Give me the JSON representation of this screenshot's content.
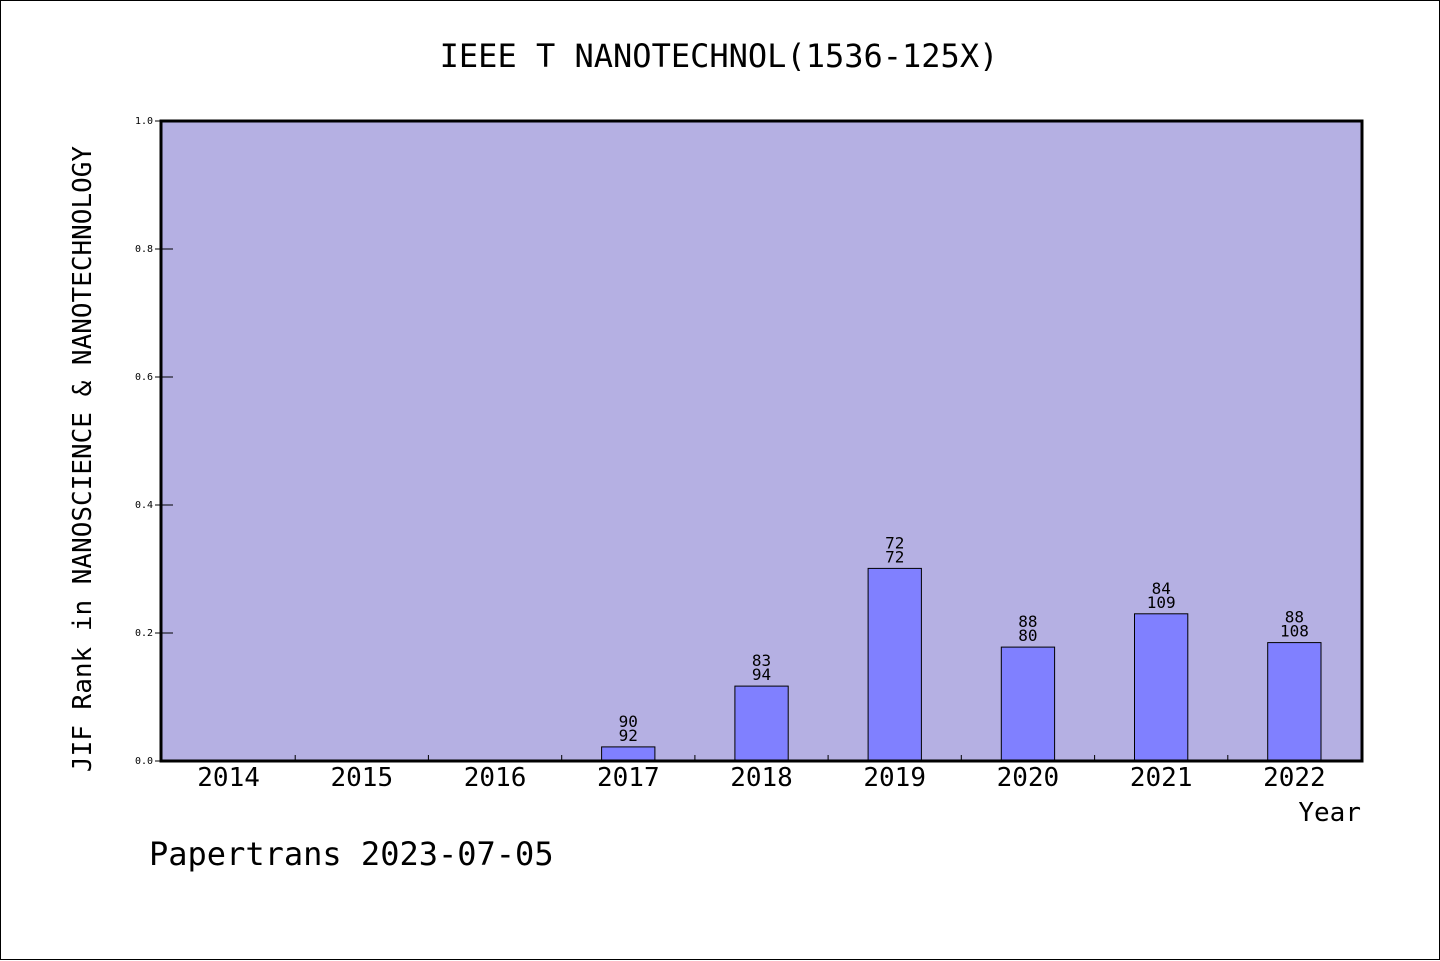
{
  "chart_data": {
    "type": "bar",
    "title": "IEEE T NANOTECHNOL(1536-125X)",
    "xlabel": "Year",
    "ylabel": "JIF Rank in NANOSCIENCE & NANOTECHNOLOGY",
    "ylim": [
      0,
      1.0
    ],
    "yticks": [
      "0.0",
      "0.2",
      "0.4",
      "0.6",
      "0.8",
      "1.0"
    ],
    "categories": [
      "2014",
      "2015",
      "2016",
      "2017",
      "2018",
      "2019",
      "2020",
      "2021",
      "2022"
    ],
    "values": [
      null,
      null,
      null,
      0.022,
      0.117,
      0.301,
      0.178,
      0.23,
      0.185
    ],
    "data_labels": [
      null,
      null,
      null,
      [
        "90",
        "92"
      ],
      [
        "83",
        "94"
      ],
      [
        "72",
        "72"
      ],
      [
        "88",
        "80"
      ],
      [
        "84",
        "109"
      ],
      [
        "88",
        "108"
      ]
    ],
    "grid": false,
    "colors": {
      "plot_background": "#b5b0e3",
      "bar_fill": "#8080ff",
      "bar_stroke": "#000000",
      "axis": "#000000"
    }
  },
  "footer": "Papertrans 2023-07-05"
}
